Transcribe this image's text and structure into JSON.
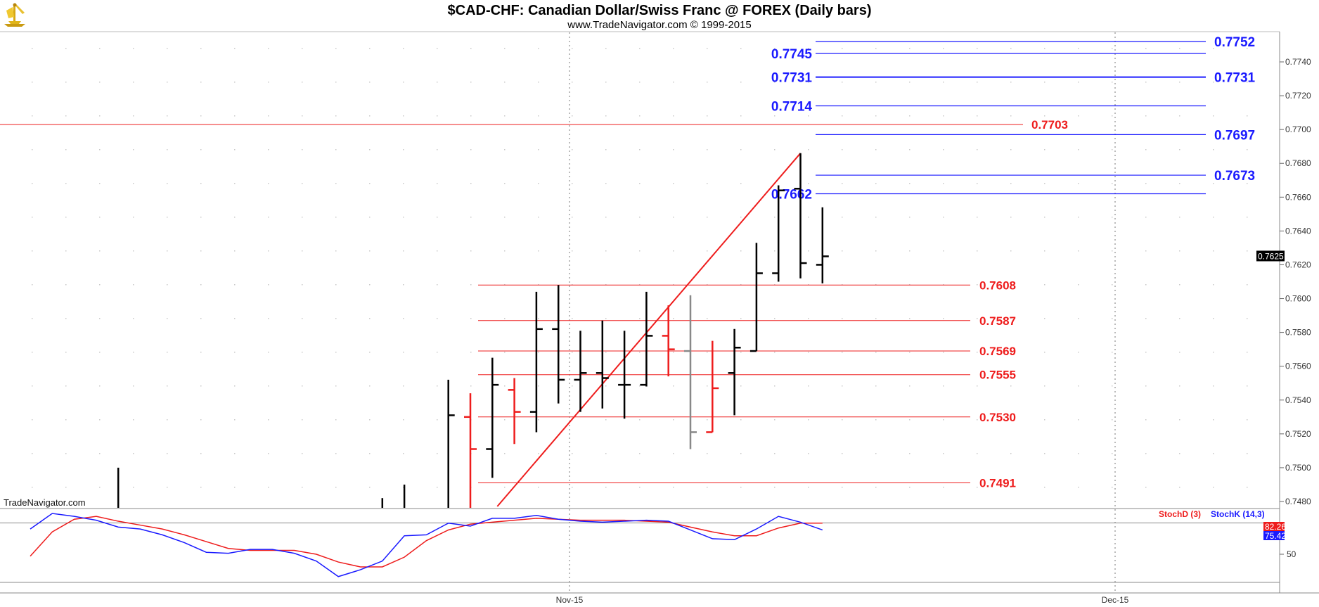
{
  "header": {
    "title": "$CAD-CHF:  Canadian Dollar/Swiss Franc @ FOREX  (Daily bars)",
    "subtitle": "www.TradeNavigator.com © 1999-2015"
  },
  "watermark": "TradeNavigator.com",
  "logo_icon": "trade-navigator-logo-icon",
  "colors": {
    "up": "#000000",
    "down": "#ee1c1c",
    "neutral": "#888888",
    "blue_level": "#1a1aff",
    "red_level": "#ee1c1c",
    "stoch_k": "#1a1aff",
    "stoch_d": "#ee1c1c"
  },
  "chart_data": {
    "type": "ohlc",
    "ylim": [
      0.7475,
      0.7765
    ],
    "y_ticks": [
      "0.7480",
      "0.7500",
      "0.7520",
      "0.7540",
      "0.7560",
      "0.7580",
      "0.7600",
      "0.7620",
      "0.7640",
      "0.7660",
      "0.7680",
      "0.7700",
      "0.7720",
      "0.7740"
    ],
    "x_labels": [
      "Nov-15",
      "Dec-15"
    ],
    "last_price": "0.7625",
    "bars": [
      {
        "i": 4,
        "o": null,
        "h": 0.75,
        "l": 0.747,
        "c": null,
        "dir": "up"
      },
      {
        "i": 16,
        "o": null,
        "h": 0.7482,
        "l": 0.747,
        "c": null,
        "dir": "up"
      },
      {
        "i": 17,
        "o": null,
        "h": 0.749,
        "l": 0.747,
        "c": null,
        "dir": "up"
      },
      {
        "i": 19,
        "o": null,
        "h": 0.7552,
        "l": 0.747,
        "c": 0.7531,
        "dir": "up"
      },
      {
        "i": 20,
        "o": 0.753,
        "h": 0.7544,
        "l": 0.747,
        "c": 0.7511,
        "dir": "down"
      },
      {
        "i": 21,
        "o": 0.7511,
        "h": 0.7565,
        "l": 0.7494,
        "c": 0.7549,
        "dir": "up"
      },
      {
        "i": 22,
        "o": 0.7546,
        "h": 0.7553,
        "l": 0.7514,
        "c": 0.7533,
        "dir": "down"
      },
      {
        "i": 23,
        "o": 0.7533,
        "h": 0.7604,
        "l": 0.7521,
        "c": 0.7582,
        "dir": "up"
      },
      {
        "i": 24,
        "o": 0.7582,
        "h": 0.7608,
        "l": 0.7538,
        "c": 0.7552,
        "dir": "up"
      },
      {
        "i": 25,
        "o": 0.7552,
        "h": 0.7581,
        "l": 0.7533,
        "c": 0.7556,
        "dir": "up"
      },
      {
        "i": 26,
        "o": 0.7556,
        "h": 0.7587,
        "l": 0.7535,
        "c": 0.7553,
        "dir": "up"
      },
      {
        "i": 27,
        "o": 0.7549,
        "h": 0.7581,
        "l": 0.7529,
        "c": 0.7549,
        "dir": "up"
      },
      {
        "i": 28,
        "o": 0.7549,
        "h": 0.7604,
        "l": 0.7548,
        "c": 0.7578,
        "dir": "up"
      },
      {
        "i": 29,
        "o": 0.7578,
        "h": 0.7596,
        "l": 0.7554,
        "c": 0.757,
        "dir": "down"
      },
      {
        "i": 30,
        "o": 0.7569,
        "h": 0.7602,
        "l": 0.7511,
        "c": 0.7521,
        "dir": "neutral"
      },
      {
        "i": 31,
        "o": 0.7521,
        "h": 0.7575,
        "l": 0.7521,
        "c": 0.7547,
        "dir": "down"
      },
      {
        "i": 32,
        "o": 0.7556,
        "h": 0.7582,
        "l": 0.7531,
        "c": 0.7571,
        "dir": "up"
      },
      {
        "i": 33,
        "o": 0.7569,
        "h": 0.7633,
        "l": 0.7569,
        "c": 0.7615,
        "dir": "up"
      },
      {
        "i": 34,
        "o": 0.7615,
        "h": 0.7667,
        "l": 0.761,
        "c": 0.7664,
        "dir": "up"
      },
      {
        "i": 35,
        "o": 0.7665,
        "h": 0.7686,
        "l": 0.7612,
        "c": 0.7621,
        "dir": "up"
      },
      {
        "i": 36,
        "o": 0.762,
        "h": 0.7654,
        "l": 0.7609,
        "c": 0.7625,
        "dir": "up"
      }
    ],
    "trendline": {
      "from": {
        "i": 21,
        "y": 0.7475
      },
      "to": {
        "i": 35,
        "y": 0.7686
      }
    },
    "blue_levels": [
      {
        "value": 0.7752,
        "label": "0.7752",
        "side": "right"
      },
      {
        "value": 0.7745,
        "label": "0.7745",
        "side": "left"
      },
      {
        "value": 0.7731,
        "label": "0.7731",
        "side": "both",
        "thick": true
      },
      {
        "value": 0.7714,
        "label": "0.7714",
        "side": "left"
      },
      {
        "value": 0.7697,
        "label": "0.7697",
        "side": "right"
      },
      {
        "value": 0.7673,
        "label": "0.7673",
        "side": "right"
      },
      {
        "value": 0.7662,
        "label": "0.7662",
        "side": "left"
      }
    ],
    "red_levels": [
      {
        "value": 0.7608,
        "label": "0.7608"
      },
      {
        "value": 0.7587,
        "label": "0.7587"
      },
      {
        "value": 0.7569,
        "label": "0.7569"
      },
      {
        "value": 0.7555,
        "label": "0.7555"
      },
      {
        "value": 0.753,
        "label": "0.7530"
      },
      {
        "value": 0.7491,
        "label": "0.7491"
      }
    ],
    "red_long_level": {
      "value": 0.7703,
      "label": "0.7703"
    },
    "stochastic": {
      "ylim": [
        20,
        105
      ],
      "y_ticks": [
        "50"
      ],
      "reference_line": 82.26,
      "k_name": "StochK (14,3)",
      "d_name": "StochD (3)",
      "k_last": "75.42",
      "d_last": "82.26",
      "k_values": [
        76,
        92,
        89,
        85,
        78,
        76,
        70,
        62,
        52,
        51,
        55,
        55,
        51,
        43,
        27,
        34,
        43,
        69,
        70,
        82,
        79,
        87,
        87,
        90,
        86,
        84,
        83,
        84,
        85,
        84,
        75,
        66,
        65,
        76,
        89,
        83,
        75
      ],
      "d_values": [
        48,
        73,
        86,
        89,
        84,
        80,
        76,
        70,
        63,
        56,
        54,
        54,
        54,
        50,
        42,
        37,
        37,
        47,
        64,
        75,
        81,
        83,
        85,
        87,
        86,
        85,
        85,
        85,
        84,
        83,
        78,
        73,
        69,
        69,
        77,
        82,
        82
      ]
    }
  }
}
